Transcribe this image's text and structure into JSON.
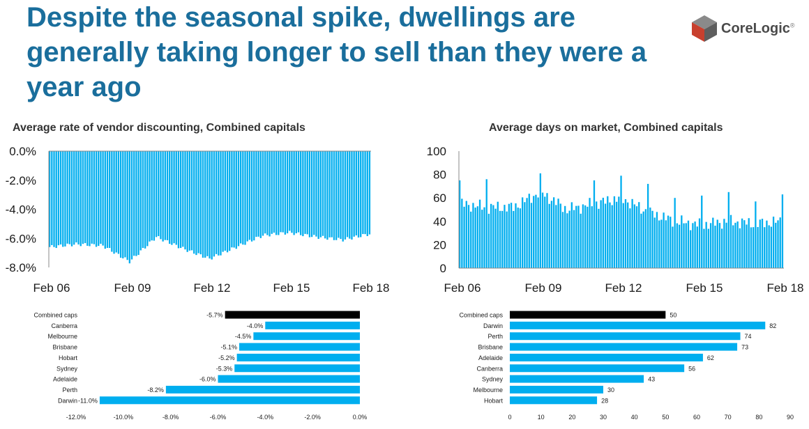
{
  "slide": {
    "title": "Despite the seasonal spike, dwellings are generally taking longer to sell than they were a year ago",
    "brand": "CoreLogic",
    "brand_mark": "®",
    "colors": {
      "title": "#1a6e9c",
      "bar": "#00aeef",
      "highlight_bar": "#000000",
      "logo_dark": "#4a4a4a",
      "logo_red": "#c8402e"
    }
  },
  "chart_data": [
    {
      "type": "bar",
      "title": "Average rate of vendor discounting, Combined capitals",
      "x_tick_labels": [
        "Feb 06",
        "Feb 09",
        "Feb 12",
        "Feb 15",
        "Feb 18"
      ],
      "y_tick_labels": [
        "0.0%",
        "-2.0%",
        "-4.0%",
        "-6.0%",
        "-8.0%"
      ],
      "ylim": [
        -8,
        0
      ],
      "x": [
        "Feb 06",
        "Feb 07",
        "Feb 08",
        "Feb 09",
        "Feb 10",
        "Feb 11",
        "Feb 12",
        "Feb 13",
        "Feb 14",
        "Feb 15",
        "Feb 16",
        "Feb 17",
        "Feb 18"
      ],
      "values": [
        -6.6,
        -6.4,
        -6.5,
        -7.6,
        -5.9,
        -6.7,
        -7.4,
        -6.6,
        -5.8,
        -5.6,
        -5.9,
        -6.1,
        -5.7
      ]
    },
    {
      "type": "bar",
      "title": "Average days on market, Combined capitals",
      "x_tick_labels": [
        "Feb 06",
        "Feb 09",
        "Feb 12",
        "Feb 15",
        "Feb 18"
      ],
      "y_tick_labels": [
        "100",
        "80",
        "60",
        "40",
        "20",
        "0"
      ],
      "ylim": [
        0,
        100
      ],
      "x": [
        "Feb 06",
        "Feb 07",
        "Feb 08",
        "Feb 09",
        "Feb 10",
        "Feb 11",
        "Feb 12",
        "Feb 13",
        "Feb 14",
        "Feb 15",
        "Feb 16",
        "Feb 17",
        "Feb 18"
      ],
      "values": [
        55,
        52,
        52,
        65,
        50,
        55,
        60,
        48,
        40,
        37,
        40,
        38,
        40
      ],
      "peaks": [
        {
          "x": "Feb 06",
          "value": 75
        },
        {
          "x": "Feb 07",
          "value": 76
        },
        {
          "x": "Feb 09",
          "value": 81
        },
        {
          "x": "Feb 11",
          "value": 75
        },
        {
          "x": "Feb 12",
          "value": 79
        },
        {
          "x": "Feb 13",
          "value": 72
        },
        {
          "x": "Feb 14",
          "value": 60
        },
        {
          "x": "Feb 15",
          "value": 62
        },
        {
          "x": "Feb 16",
          "value": 65
        },
        {
          "x": "Feb 17",
          "value": 57
        },
        {
          "x": "Feb 18",
          "value": 63
        }
      ]
    },
    {
      "type": "bar",
      "orientation": "horizontal",
      "categories": [
        "Combined caps",
        "Canberra",
        "Melbourne",
        "Brisbane",
        "Hobart",
        "Sydney",
        "Adelaide",
        "Perth",
        "Darwin"
      ],
      "values": [
        -5.7,
        -4.0,
        -4.5,
        -5.1,
        -5.2,
        -5.3,
        -6.0,
        -8.2,
        -11.0
      ],
      "labels": [
        "-5.7%",
        "-4.0%",
        "-4.5%",
        "-5.1%",
        "-5.2%",
        "-5.3%",
        "-6.0%",
        "-8.2%",
        "-11.0%"
      ],
      "highlight": "Combined caps",
      "x_tick_labels": [
        "-12.0%",
        "-10.0%",
        "-8.0%",
        "-6.0%",
        "-4.0%",
        "-2.0%",
        "0.0%"
      ],
      "xlim": [
        -12,
        0
      ]
    },
    {
      "type": "bar",
      "orientation": "horizontal",
      "categories": [
        "Combined caps",
        "Darwin",
        "Perth",
        "Brisbane",
        "Adelaide",
        "Canberra",
        "Sydney",
        "Melbourne",
        "Hobart"
      ],
      "values": [
        50,
        82,
        74,
        73,
        62,
        56,
        43,
        30,
        28
      ],
      "labels": [
        "50",
        "82",
        "74",
        "73",
        "62",
        "56",
        "43",
        "30",
        "28"
      ],
      "highlight": "Combined caps",
      "x_tick_labels": [
        "0",
        "10",
        "20",
        "30",
        "40",
        "50",
        "60",
        "70",
        "80",
        "90"
      ],
      "xlim": [
        0,
        90
      ]
    }
  ]
}
